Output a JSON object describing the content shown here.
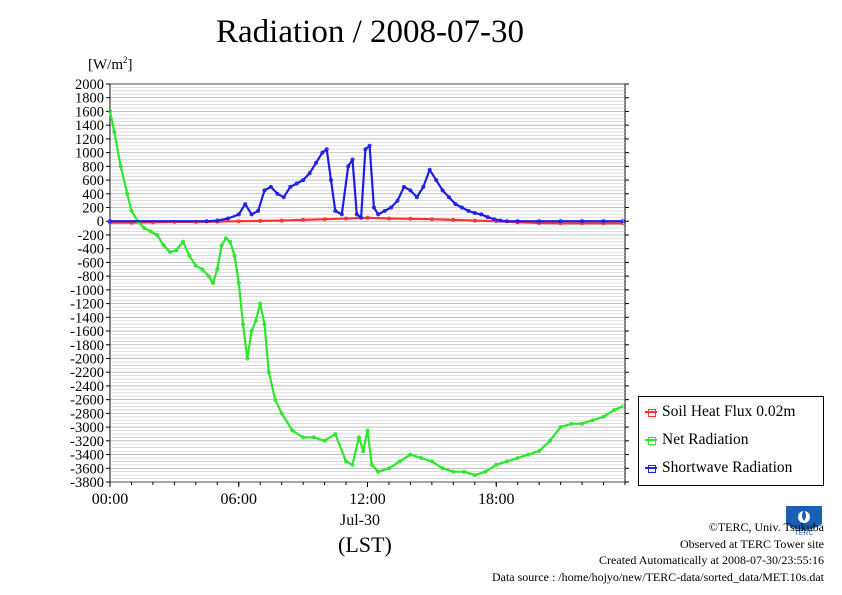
{
  "title": "Radiation / 2008-07-30",
  "units_label": "[W/m²]",
  "x_ticks": [
    "00:00",
    "06:00",
    "12:00",
    "18:00"
  ],
  "x_date": "Jul-30",
  "x_lst": "(LST)",
  "y_ticks": [
    2000,
    1800,
    1600,
    1400,
    1200,
    1000,
    800,
    600,
    400,
    200,
    0,
    -200,
    -400,
    -600,
    -800,
    -1000,
    -1200,
    -1400,
    -1600,
    -1800,
    -2000,
    -2200,
    -2400,
    -2600,
    -2800,
    -3000,
    -3200,
    -3400,
    -3600,
    -3800
  ],
  "legend": [
    {
      "label": "Soil Heat Flux 0.02m",
      "color": "#ff3030"
    },
    {
      "label": "Net Radiation",
      "color": "#2ee62e"
    },
    {
      "label": "Shortwave Radiation",
      "color": "#1e1ee6"
    }
  ],
  "credits": {
    "line1": "©TERC, Univ. Tsukuba",
    "line2": "Observed at TERC Tower site",
    "line3": "Created Automatically at 2008-07-30/23:55:16",
    "line4": "Data source : /home/hojyo/new/TERC-data/sorted_data/MET.10s.dat"
  },
  "logo_text": "TERC",
  "chart_data": {
    "type": "line",
    "title": "Radiation / 2008-07-30",
    "ylabel": "[W/m²]",
    "xlabel": "(LST)",
    "ylim": [
      -3800,
      2000
    ],
    "xlim": [
      0,
      24
    ],
    "x_unit": "hour",
    "legend": "right",
    "grid": true,
    "series": [
      {
        "name": "Soil Heat Flux 0.02m",
        "color": "#ff3030",
        "x": [
          0,
          1,
          2,
          3,
          4,
          5,
          6,
          7,
          8,
          9,
          10,
          11,
          12,
          13,
          14,
          15,
          16,
          17,
          18,
          19,
          20,
          21,
          22,
          23,
          23.9
        ],
        "values": [
          -20,
          -20,
          -15,
          -10,
          -10,
          -5,
          0,
          5,
          10,
          20,
          30,
          40,
          50,
          40,
          35,
          30,
          20,
          10,
          0,
          -15,
          -25,
          -30,
          -30,
          -30,
          -30
        ]
      },
      {
        "name": "Net Radiation",
        "color": "#2ee62e",
        "x": [
          0,
          0.2,
          0.5,
          0.8,
          1.0,
          1.3,
          1.6,
          1.9,
          2.2,
          2.5,
          2.8,
          3.1,
          3.4,
          3.7,
          4.0,
          4.3,
          4.6,
          4.8,
          5.0,
          5.2,
          5.4,
          5.6,
          5.8,
          6.0,
          6.2,
          6.4,
          6.6,
          6.8,
          7.0,
          7.2,
          7.4,
          7.7,
          8.0,
          8.5,
          9.0,
          9.5,
          10.0,
          10.5,
          11.0,
          11.3,
          11.6,
          11.8,
          12.0,
          12.2,
          12.5,
          13.0,
          13.5,
          14.0,
          14.5,
          15.0,
          15.5,
          16.0,
          16.5,
          17.0,
          17.5,
          18.0,
          18.5,
          19.0,
          19.5,
          20.0,
          20.5,
          21.0,
          21.5,
          22.0,
          22.5,
          23.0,
          23.5,
          23.9
        ],
        "values": [
          1600,
          1300,
          800,
          400,
          150,
          0,
          -100,
          -150,
          -200,
          -350,
          -450,
          -420,
          -300,
          -500,
          -650,
          -700,
          -800,
          -900,
          -700,
          -350,
          -250,
          -300,
          -500,
          -900,
          -1500,
          -2000,
          -1600,
          -1450,
          -1200,
          -1500,
          -2200,
          -2600,
          -2800,
          -3050,
          -3150,
          -3150,
          -3200,
          -3100,
          -3500,
          -3550,
          -3150,
          -3350,
          -3050,
          -3550,
          -3650,
          -3600,
          -3500,
          -3400,
          -3450,
          -3500,
          -3600,
          -3650,
          -3650,
          -3700,
          -3650,
          -3550,
          -3500,
          -3450,
          -3400,
          -3350,
          -3200,
          -3000,
          -2950,
          -2950,
          -2900,
          -2850,
          -2750,
          -2700
        ]
      },
      {
        "name": "Shortwave Radiation",
        "color": "#1e1ee6",
        "x": [
          0,
          4.5,
          5.0,
          5.5,
          6.0,
          6.3,
          6.6,
          6.9,
          7.2,
          7.5,
          7.8,
          8.1,
          8.4,
          8.7,
          9.0,
          9.3,
          9.6,
          9.9,
          10.1,
          10.3,
          10.5,
          10.8,
          11.1,
          11.3,
          11.5,
          11.7,
          11.9,
          12.1,
          12.3,
          12.5,
          12.8,
          13.1,
          13.4,
          13.7,
          14.0,
          14.3,
          14.6,
          14.9,
          15.2,
          15.5,
          15.8,
          16.1,
          16.4,
          16.7,
          17.0,
          17.3,
          17.6,
          17.9,
          18.2,
          18.5,
          19.0,
          20.0,
          21.0,
          22.0,
          23.0,
          23.9
        ],
        "values": [
          0,
          0,
          10,
          40,
          100,
          250,
          100,
          150,
          450,
          500,
          400,
          350,
          500,
          550,
          600,
          700,
          850,
          1000,
          1050,
          600,
          150,
          100,
          800,
          900,
          100,
          50,
          1050,
          1100,
          200,
          100,
          150,
          200,
          300,
          500,
          450,
          350,
          500,
          750,
          600,
          450,
          350,
          250,
          200,
          150,
          120,
          100,
          60,
          30,
          10,
          0,
          0,
          0,
          0,
          0,
          0,
          0
        ]
      }
    ]
  }
}
